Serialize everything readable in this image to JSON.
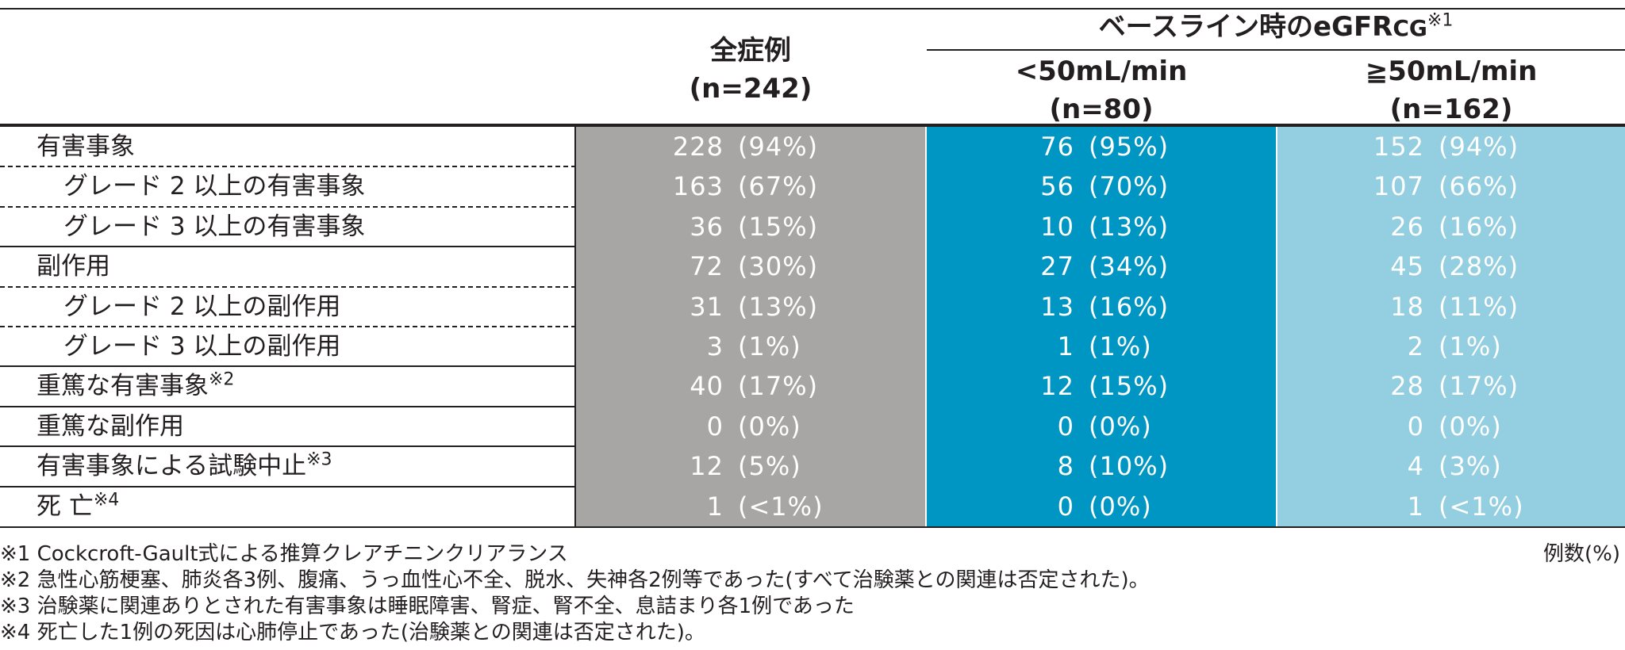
{
  "header": {
    "col_all_title": "全症例",
    "col_all_n": "(n=242)",
    "group_title": "ベースライン時のeGFR",
    "group_title_sub": "CG",
    "group_title_sup": "※1",
    "col_lt_title": "<50mL/min",
    "col_lt_n": "(n=80)",
    "col_ge_title": "≧50mL/min",
    "col_ge_n": "(n=162)"
  },
  "rows": [
    {
      "label": "有害事象",
      "sup": "",
      "all": [
        "228",
        "(94%)"
      ],
      "lt": [
        "76",
        "(95%)"
      ],
      "ge": [
        "152",
        "(94%)"
      ]
    },
    {
      "label": "グレード 2 以上の有害事象",
      "sup": "",
      "all": [
        "163",
        "(67%)"
      ],
      "lt": [
        "56",
        "(70%)"
      ],
      "ge": [
        "107",
        "(66%)"
      ]
    },
    {
      "label": "グレード 3 以上の有害事象",
      "sup": "",
      "all": [
        "36",
        "(15%)"
      ],
      "lt": [
        "10",
        "(13%)"
      ],
      "ge": [
        "26",
        "(16%)"
      ]
    },
    {
      "label": "副作用",
      "sup": "",
      "all": [
        "72",
        "(30%)"
      ],
      "lt": [
        "27",
        "(34%)"
      ],
      "ge": [
        "45",
        "(28%)"
      ]
    },
    {
      "label": "グレード 2 以上の副作用",
      "sup": "",
      "all": [
        "31",
        "(13%)"
      ],
      "lt": [
        "13",
        "(16%)"
      ],
      "ge": [
        "18",
        "(11%)"
      ]
    },
    {
      "label": "グレード 3 以上の副作用",
      "sup": "",
      "all": [
        "3",
        "(1%)"
      ],
      "lt": [
        "1",
        "(1%)"
      ],
      "ge": [
        "2",
        "(1%)"
      ]
    },
    {
      "label": "重篤な有害事象",
      "sup": "※2",
      "all": [
        "40",
        "(17%)"
      ],
      "lt": [
        "12",
        "(15%)"
      ],
      "ge": [
        "28",
        "(17%)"
      ]
    },
    {
      "label": "重篤な副作用",
      "sup": "",
      "all": [
        "0",
        "(0%)"
      ],
      "lt": [
        "0",
        "(0%)"
      ],
      "ge": [
        "0",
        "(0%)"
      ]
    },
    {
      "label": "有害事象による試験中止",
      "sup": "※3",
      "all": [
        "12",
        "(5%)"
      ],
      "lt": [
        "8",
        "(10%)"
      ],
      "ge": [
        "4",
        "(3%)"
      ]
    },
    {
      "label": "死 亡",
      "sup": "※4",
      "all": [
        "1",
        "(<1%)"
      ],
      "lt": [
        "0",
        "(0%)"
      ],
      "ge": [
        "1",
        "(<1%)"
      ]
    }
  ],
  "footnotes": [
    "※1 Cockcroft-Gault式による推算クレアチニンクリアランス",
    "※2 急性心筋梗塞、肺炎各3例、腹痛、うっ血性心不全、脱水、失神各2例等であった(すべて治験薬との関連は否定された)。",
    "※3 治験薬に関連ありとされた有害事象は睡眠障害、腎症、腎不全、息詰まり各1例であった",
    "※4 死亡した1例の死因は心肺停止であった(治験薬との関連は否定された)。"
  ],
  "unit_label": "例数(%)",
  "colors": {
    "all_column": "#a7a6a5",
    "lt50_column": "#0096c3",
    "ge50_column": "#93cfe0",
    "cell_text": "#ffffff",
    "rule": "#231f20"
  }
}
